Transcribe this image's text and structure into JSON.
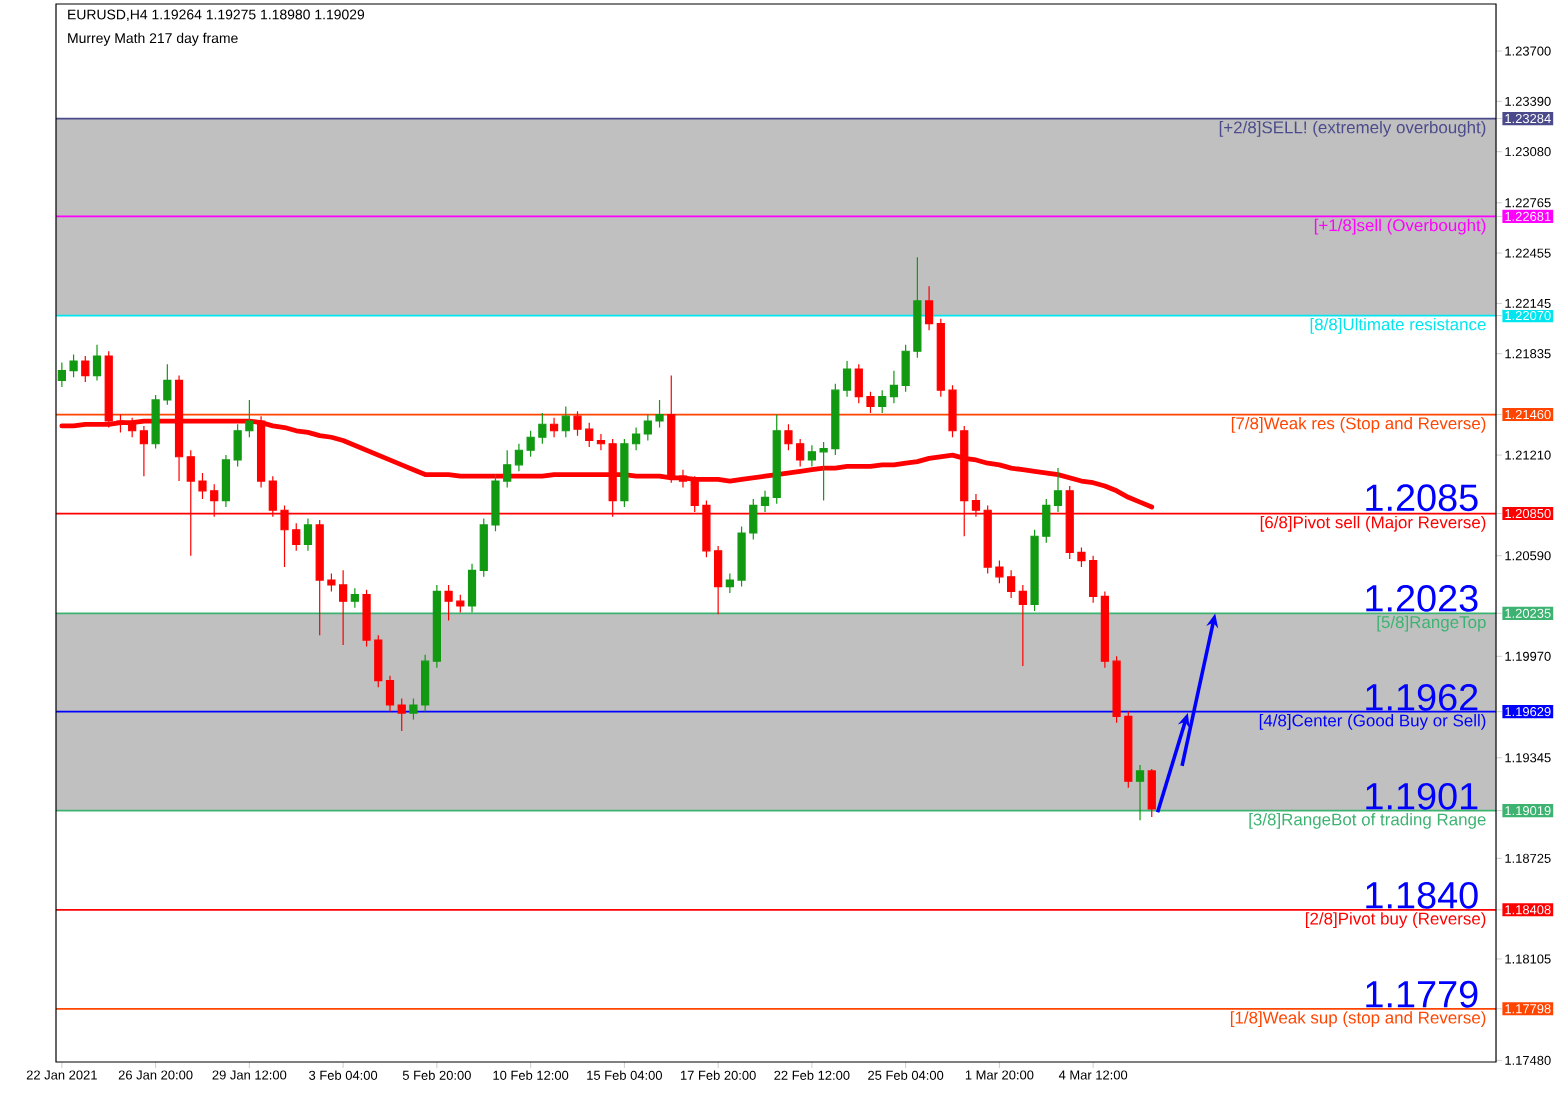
{
  "chart_data": {
    "type": "candlestick",
    "title": "EURUSD,H4 1.19264 1.19275 1.18980 1.19029",
    "subtitle": "Murrey Math 217 day frame",
    "categories": [
      "22 Jan 2021",
      null,
      null,
      null,
      null,
      null,
      null,
      null,
      "26 Jan 20:00",
      null,
      null,
      null,
      null,
      null,
      null,
      null,
      "29 Jan 12:00",
      null,
      null,
      null,
      null,
      null,
      null,
      null,
      "3 Feb 04:00",
      null,
      null,
      null,
      null,
      null,
      null,
      null,
      "5 Feb 20:00",
      null,
      null,
      null,
      null,
      null,
      null,
      null,
      "10 Feb 12:00",
      null,
      null,
      null,
      null,
      null,
      null,
      null,
      "15 Feb 04:00",
      null,
      null,
      null,
      null,
      null,
      null,
      null,
      "17 Feb 20:00",
      null,
      null,
      null,
      null,
      null,
      null,
      null,
      "22 Feb 12:00",
      null,
      null,
      null,
      null,
      null,
      null,
      null,
      "25 Feb 04:00",
      null,
      null,
      null,
      null,
      null,
      null,
      null,
      "1 Mar 20:00",
      null,
      null,
      null,
      null,
      null,
      null,
      null,
      "4 Mar 12:00",
      null,
      null,
      null,
      null,
      null
    ],
    "ohlc": [
      [
        1.2167,
        1.2178,
        1.2163,
        1.2173
      ],
      [
        1.2173,
        1.2183,
        1.2169,
        1.2179
      ],
      [
        1.2179,
        1.2182,
        1.2166,
        1.217
      ],
      [
        1.217,
        1.2189,
        1.2167,
        1.2182
      ],
      [
        1.2182,
        1.2185,
        1.2138,
        1.2142
      ],
      [
        1.2142,
        1.2146,
        1.2135,
        1.214
      ],
      [
        1.214,
        1.2144,
        1.2132,
        1.2136
      ],
      [
        1.2136,
        1.2139,
        1.2108,
        1.2128
      ],
      [
        1.2128,
        1.2158,
        1.2125,
        1.2155
      ],
      [
        1.2155,
        1.2177,
        1.2152,
        1.2167
      ],
      [
        1.2167,
        1.217,
        1.2105,
        1.212
      ],
      [
        1.212,
        1.2124,
        1.2059,
        1.2105
      ],
      [
        1.2105,
        1.211,
        1.2094,
        1.2099
      ],
      [
        1.2099,
        1.2103,
        1.2083,
        1.2093
      ],
      [
        1.2093,
        1.2121,
        1.2089,
        1.2118
      ],
      [
        1.2118,
        1.214,
        1.2114,
        1.2136
      ],
      [
        1.2136,
        1.2155,
        1.2132,
        1.2142
      ],
      [
        1.2142,
        1.2145,
        1.2101,
        1.2105
      ],
      [
        1.2105,
        1.2108,
        1.2083,
        1.2087
      ],
      [
        1.2087,
        1.209,
        1.2052,
        1.2075
      ],
      [
        1.2075,
        1.2079,
        1.2062,
        1.2066
      ],
      [
        1.2066,
        1.2082,
        1.2062,
        1.2078
      ],
      [
        1.2078,
        1.2081,
        1.201,
        1.2044
      ],
      [
        1.2044,
        1.2048,
        1.2037,
        1.2041
      ],
      [
        1.2041,
        1.205,
        1.2004,
        1.2031
      ],
      [
        1.2031,
        1.2039,
        1.2027,
        1.2035
      ],
      [
        1.2035,
        1.2038,
        1.2003,
        1.2007
      ],
      [
        1.2007,
        1.201,
        1.1978,
        1.1982
      ],
      [
        1.1982,
        1.1985,
        1.1963,
        1.1967
      ],
      [
        1.1967,
        1.1971,
        1.1951,
        1.1962
      ],
      [
        1.1962,
        1.1971,
        1.1958,
        1.1967
      ],
      [
        1.1967,
        1.1998,
        1.1963,
        1.1994
      ],
      [
        1.1994,
        1.2041,
        1.199,
        1.2037
      ],
      [
        1.2037,
        1.2041,
        1.2019,
        1.2031
      ],
      [
        1.2031,
        1.2035,
        1.2024,
        1.2028
      ],
      [
        1.2028,
        1.2054,
        1.2024,
        1.205
      ],
      [
        1.205,
        1.2082,
        1.2046,
        1.2078
      ],
      [
        1.2078,
        1.2109,
        1.2074,
        1.2105
      ],
      [
        1.2105,
        1.2124,
        1.2101,
        1.2115
      ],
      [
        1.2115,
        1.2128,
        1.2111,
        1.2124
      ],
      [
        1.2124,
        1.2136,
        1.212,
        1.2132
      ],
      [
        1.2132,
        1.2147,
        1.2128,
        1.214
      ],
      [
        1.214,
        1.2144,
        1.2132,
        1.2136
      ],
      [
        1.2136,
        1.2151,
        1.2132,
        1.2145
      ],
      [
        1.2145,
        1.2148,
        1.2133,
        1.2137
      ],
      [
        1.2137,
        1.2141,
        1.2126,
        1.213
      ],
      [
        1.213,
        1.2134,
        1.2124,
        1.2128
      ],
      [
        1.2128,
        1.2131,
        1.2083,
        1.2093
      ],
      [
        1.2093,
        1.2131,
        1.2089,
        1.2128
      ],
      [
        1.2128,
        1.2138,
        1.2124,
        1.2134
      ],
      [
        1.2134,
        1.2146,
        1.213,
        1.2142
      ],
      [
        1.2142,
        1.2155,
        1.2138,
        1.2146
      ],
      [
        1.2146,
        1.217,
        1.2104,
        1.2108
      ],
      [
        1.2108,
        1.2112,
        1.2101,
        1.2105
      ],
      [
        1.2105,
        1.2108,
        1.2086,
        1.209
      ],
      [
        1.209,
        1.2093,
        1.2058,
        1.2062
      ],
      [
        1.2062,
        1.2065,
        1.2023,
        1.204
      ],
      [
        1.204,
        1.2048,
        1.2036,
        1.2044
      ],
      [
        1.2044,
        1.2077,
        1.204,
        1.2073
      ],
      [
        1.2073,
        1.2094,
        1.2069,
        1.209
      ],
      [
        1.209,
        1.2099,
        1.2086,
        1.2095
      ],
      [
        1.2095,
        1.2146,
        1.2091,
        1.2136
      ],
      [
        1.2136,
        1.214,
        1.2124,
        1.2128
      ],
      [
        1.2128,
        1.2131,
        1.2114,
        1.2118
      ],
      [
        1.2118,
        1.2127,
        1.2114,
        1.2123
      ],
      [
        1.2123,
        1.2129,
        1.2093,
        1.2125
      ],
      [
        1.2125,
        1.2165,
        1.2121,
        1.2161
      ],
      [
        1.2161,
        1.2179,
        1.2157,
        1.2174
      ],
      [
        1.2174,
        1.2177,
        1.2153,
        1.2157
      ],
      [
        1.2157,
        1.216,
        1.2147,
        1.2151
      ],
      [
        1.2151,
        1.2161,
        1.2147,
        1.2157
      ],
      [
        1.2157,
        1.2173,
        1.2153,
        1.2164
      ],
      [
        1.2164,
        1.2189,
        1.216,
        1.2185
      ],
      [
        1.2185,
        1.2243,
        1.2181,
        1.2216
      ],
      [
        1.2216,
        1.2225,
        1.2198,
        1.2202
      ],
      [
        1.2202,
        1.2205,
        1.2157,
        1.2161
      ],
      [
        1.2161,
        1.2164,
        1.2132,
        1.2136
      ],
      [
        1.2136,
        1.2139,
        1.2071,
        1.2093
      ],
      [
        1.2093,
        1.2097,
        1.2083,
        1.2087
      ],
      [
        1.2087,
        1.209,
        1.2048,
        1.2052
      ],
      [
        1.2052,
        1.2056,
        1.2042,
        1.2046
      ],
      [
        1.2046,
        1.205,
        1.2033,
        1.2037
      ],
      [
        1.2037,
        1.2041,
        1.1991,
        1.2029
      ],
      [
        1.2029,
        1.2075,
        1.2025,
        1.2071
      ],
      [
        1.2071,
        1.2094,
        1.2067,
        1.209
      ],
      [
        1.209,
        1.2113,
        1.2086,
        1.2099
      ],
      [
        1.2099,
        1.2102,
        1.2057,
        1.2061
      ],
      [
        1.2061,
        1.2064,
        1.2052,
        1.2056
      ],
      [
        1.2056,
        1.2059,
        1.203,
        1.2034
      ],
      [
        1.2034,
        1.2037,
        1.199,
        1.1994
      ],
      [
        1.1994,
        1.1997,
        1.1956,
        1.196
      ],
      [
        1.196,
        1.1963,
        1.1916,
        1.192
      ],
      [
        1.192,
        1.193,
        1.1896,
        1.19264
      ],
      [
        1.19264,
        1.19275,
        1.1898,
        1.19029
      ]
    ],
    "colors": [
      "#119911",
      "#119911",
      "#ff0000",
      "#119911",
      "#ff0000",
      "#ff0000",
      "#ff0000",
      "#ff0000",
      "#119911",
      "#119911",
      "#ff0000",
      "#ff0000",
      "#ff0000",
      "#ff0000",
      "#119911",
      "#119911",
      "#119911",
      "#ff0000",
      "#ff0000",
      "#ff0000",
      "#ff0000",
      "#119911",
      "#ff0000",
      "#ff0000",
      "#ff0000",
      "#119911",
      "#ff0000",
      "#ff0000",
      "#ff0000",
      "#ff0000",
      "#119911",
      "#119911",
      "#119911",
      "#ff0000",
      "#ff0000",
      "#119911",
      "#119911",
      "#119911",
      "#119911",
      "#119911",
      "#119911",
      "#119911",
      "#ff0000",
      "#119911",
      "#ff0000",
      "#ff0000",
      "#ff0000",
      "#ff0000",
      "#119911",
      "#119911",
      "#119911",
      "#119911",
      "#ff0000",
      "#ff0000",
      "#ff0000",
      "#ff0000",
      "#ff0000",
      "#119911",
      "#119911",
      "#119911",
      "#119911",
      "#119911",
      "#ff0000",
      "#ff0000",
      "#119911",
      "#119911",
      "#119911",
      "#119911",
      "#ff0000",
      "#ff0000",
      "#119911",
      "#119911",
      "#119911",
      "#119911",
      "#ff0000",
      "#ff0000",
      "#ff0000",
      "#ff0000",
      "#ff0000",
      "#ff0000",
      "#ff0000",
      "#ff0000",
      "#ff0000",
      "#119911",
      "#119911",
      "#119911",
      "#ff0000",
      "#ff0000",
      "#ff0000",
      "#ff0000",
      "#ff0000",
      "#ff0000",
      "#119911",
      "#ff0000"
    ],
    "series": [
      {
        "type": "line",
        "color": "#ff0000",
        "values": [
          1.2139,
          1.2139,
          1.214,
          1.214,
          1.214,
          1.2141,
          1.2141,
          1.2142,
          1.2142,
          1.2142,
          1.2142,
          1.2142,
          1.2142,
          1.2142,
          1.2142,
          1.2142,
          1.2142,
          1.2141,
          1.2139,
          1.2138,
          1.2136,
          1.2135,
          1.2133,
          1.2132,
          1.213,
          1.2127,
          1.2124,
          1.2121,
          1.2118,
          1.2115,
          1.2112,
          1.2109,
          1.2109,
          1.2109,
          1.2108,
          1.2108,
          1.2108,
          1.2108,
          1.2108,
          1.2108,
          1.2108,
          1.2108,
          1.2109,
          1.2109,
          1.2109,
          1.2109,
          1.2109,
          1.2109,
          1.2109,
          1.2108,
          1.2108,
          1.2108,
          1.2107,
          1.2107,
          1.2106,
          1.2106,
          1.2106,
          1.2105,
          1.2106,
          1.2107,
          1.2108,
          1.2109,
          1.211,
          1.2111,
          1.2112,
          1.2113,
          1.2113,
          1.2114,
          1.2114,
          1.2114,
          1.2115,
          1.2115,
          1.2116,
          1.2117,
          1.2119,
          1.212,
          1.2121,
          1.2119,
          1.2118,
          1.2116,
          1.2115,
          1.2113,
          1.2112,
          1.2111,
          1.211,
          1.2109,
          1.2107,
          1.2105,
          1.2104,
          1.2102,
          1.2099,
          1.2095,
          1.2092,
          1.2089
        ]
      }
    ],
    "ylim": [
      1.1747,
      1.2399
    ],
    "yticks": [
      {
        "value": 1.1748,
        "label": "1.17480"
      },
      {
        "value": 1.17798,
        "label": "1.17798"
      },
      {
        "value": 1.18105,
        "label": "1.18105"
      },
      {
        "value": 1.18408,
        "label": "1.18408"
      },
      {
        "value": 1.18725,
        "label": "1.18725"
      },
      {
        "value": 1.19019,
        "label": "1.19019"
      },
      {
        "value": 1.19345,
        "label": "1.19345"
      },
      {
        "value": 1.19629,
        "label": "1.19629"
      },
      {
        "value": 1.1997,
        "label": "1.19970"
      },
      {
        "value": 1.20235,
        "label": "1.20235"
      },
      {
        "value": 1.2059,
        "label": "1.20590"
      },
      {
        "value": 1.2085,
        "label": "1.20850"
      },
      {
        "value": 1.2121,
        "label": "1.21210"
      },
      {
        "value": 1.2146,
        "label": "1.21460"
      },
      {
        "value": 1.21835,
        "label": "1.21835"
      },
      {
        "value": 1.2207,
        "label": "1.22070"
      },
      {
        "value": 1.22145,
        "label": "1.22145"
      },
      {
        "value": 1.22455,
        "label": "1.22455"
      },
      {
        "value": 1.22681,
        "label": "1.22681"
      },
      {
        "value": 1.22765,
        "label": "1.22765"
      },
      {
        "value": 1.2308,
        "label": "1.23080"
      },
      {
        "value": 1.23284,
        "label": "1.23284"
      },
      {
        "value": 1.2339,
        "label": "1.23390"
      },
      {
        "value": 1.237,
        "label": "1.23700"
      }
    ],
    "bands": [
      {
        "axis": "y",
        "from": 1.2207,
        "to": 1.23284,
        "color": "#c0c0c0"
      },
      {
        "axis": "y",
        "from": 1.19019,
        "to": 1.20235,
        "color": "#c0c0c0"
      }
    ],
    "ref_lines": [
      {
        "axis": "y",
        "value": 1.23284,
        "label": "[+2/8]SELL! (extremely overbought)",
        "color": "#4b4b8c"
      },
      {
        "axis": "y",
        "value": 1.22681,
        "label": "[+1/8]sell (Overbought)",
        "color": "#ff00ff"
      },
      {
        "axis": "y",
        "value": 1.2207,
        "label": "[8/8]Ultimate resistance",
        "color": "#00e5ee"
      },
      {
        "axis": "y",
        "value": 1.2146,
        "label": "[7/8]Weak res (Stop and Reverse)",
        "color": "#ff4500"
      },
      {
        "axis": "y",
        "value": 1.2085,
        "label": "[6/8]Pivot sell (Major Reverse)",
        "color": "#ff0000"
      },
      {
        "axis": "y",
        "value": 1.20235,
        "label": "[5/8]RangeTop",
        "color": "#3cb371"
      },
      {
        "axis": "y",
        "value": 1.19629,
        "label": "[4/8]Center (Good Buy or Sell)",
        "color": "#0000ff"
      },
      {
        "axis": "y",
        "value": 1.19019,
        "label": "[3/8]RangeBot of trading Range",
        "color": "#3cb371"
      },
      {
        "axis": "y",
        "value": 1.18408,
        "label": "[2/8]Pivot buy (Reverse)",
        "color": "#ff0000"
      },
      {
        "axis": "y",
        "value": 1.17798,
        "label": "[1/8]Weak sup (stop and Reverse)",
        "color": "#ff4500"
      }
    ],
    "annotations": [
      {
        "text": "1.2085",
        "y": 1.2085
      },
      {
        "text": "1.2023",
        "y": 1.2023
      },
      {
        "text": "1.1962",
        "y": 1.1962
      },
      {
        "text": "1.1901",
        "y": 1.1901
      },
      {
        "text": "1.1840",
        "y": 1.184
      },
      {
        "text": "1.1779",
        "y": 1.1779
      }
    ]
  }
}
